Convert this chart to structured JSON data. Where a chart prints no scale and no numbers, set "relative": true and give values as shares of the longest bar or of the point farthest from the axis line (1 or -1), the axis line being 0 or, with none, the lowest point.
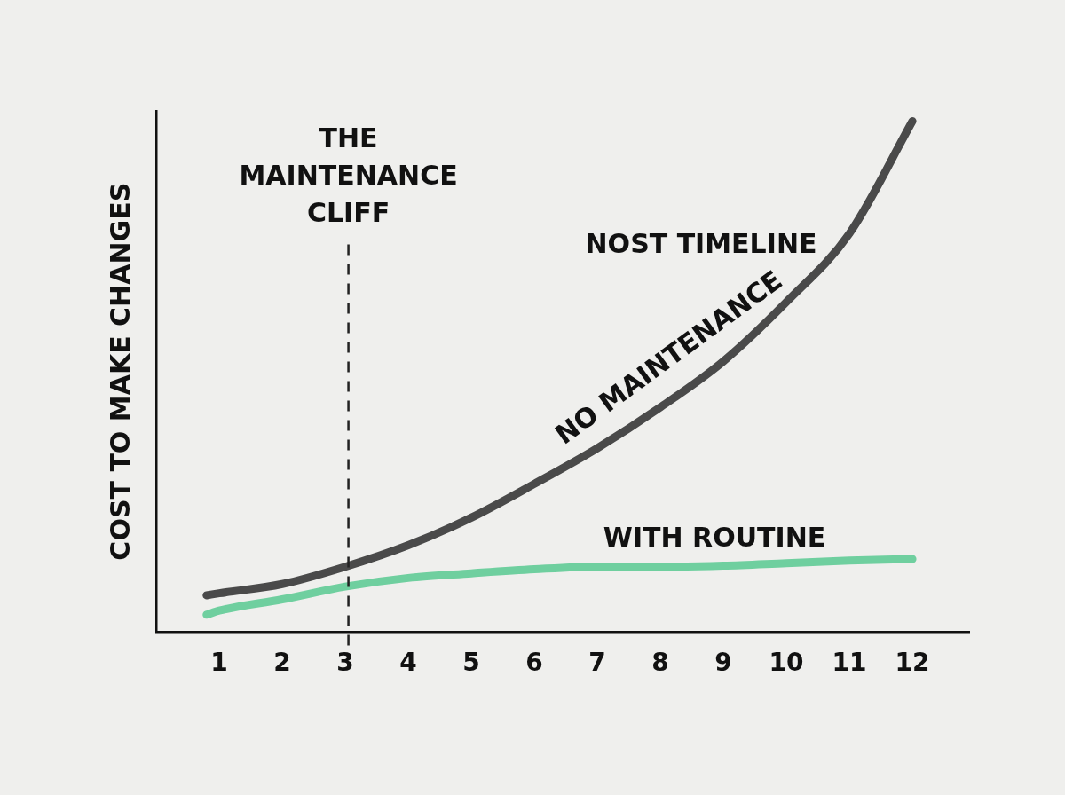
{
  "chart_data": {
    "type": "line",
    "relative": true,
    "ylabel": "COST TO MAKE CHANGES",
    "xlim": [
      0,
      12.9
    ],
    "xticks": [
      1,
      2,
      3,
      4,
      5,
      6,
      7,
      8,
      9,
      10,
      11,
      12
    ],
    "marker": "none",
    "legend": false,
    "series": [
      {
        "name": "NO MAINTENANCE",
        "color": "#4a4a4a",
        "x": [
          0.8,
          1,
          2,
          3,
          4,
          5,
          6,
          7,
          8,
          9,
          10,
          11,
          12
        ],
        "values": [
          0.072,
          0.076,
          0.094,
          0.128,
          0.17,
          0.224,
          0.29,
          0.36,
          0.44,
          0.53,
          0.646,
          0.78,
          1
        ]
      },
      {
        "name": "WITH ROUTINE",
        "color": "#6fcf9f",
        "x": [
          0.8,
          1,
          2,
          3,
          4,
          5,
          6,
          7,
          8,
          9,
          10,
          11,
          12
        ],
        "values": [
          0.034,
          0.042,
          0.064,
          0.089,
          0.106,
          0.115,
          0.123,
          0.128,
          0.128,
          0.13,
          0.135,
          0.14,
          0.143
        ]
      }
    ],
    "ref_lines": [
      {
        "axis": "x",
        "value": 3.05,
        "label": "THE MAINTENANCE CLIFF",
        "line_style": "dashed",
        "color": "#222222"
      }
    ],
    "annotations": [
      "NOST TIMELINE"
    ]
  }
}
